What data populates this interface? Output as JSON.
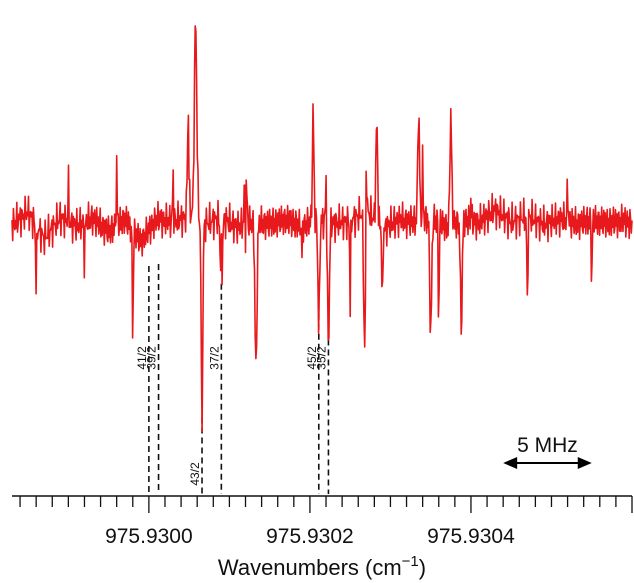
{
  "chart_data": {
    "type": "line",
    "xlabel": "Wavenumbers (cm",
    "xlabel_superscript": "−1",
    "xlabel_close": ")",
    "xlim": [
      975.92983,
      975.9306
    ],
    "tick_step": 2e-05,
    "tick_labels": [
      {
        "x": 975.93,
        "label": "975.9300"
      },
      {
        "x": 975.9302,
        "label": "975.9302"
      },
      {
        "x": 975.9304,
        "label": "975.9304"
      }
    ],
    "scale_bar": {
      "label": "5 MHz",
      "x_start": 975.93044,
      "x_end": 975.93055
    },
    "assignment_lines": [
      {
        "label": "41/2",
        "x": 975.93,
        "y_from": -0.18
      },
      {
        "label": "39/2",
        "x": 975.930012,
        "y_from": -0.17
      },
      {
        "label": "43/2",
        "x": 975.930066,
        "y_from": -0.95
      },
      {
        "label": "37/2",
        "x": 975.93009,
        "y_from": -0.27
      },
      {
        "label": "45/2",
        "x": 975.930211,
        "y_from": -0.27
      },
      {
        "label": "35/2",
        "x": 975.930223,
        "y_from": -0.35
      }
    ],
    "ylim": [
      -1.1,
      1.05
    ],
    "series": [
      {
        "color": "#e8191c",
        "points": [
          [
            975.92983,
            0.0
          ],
          [
            975.92985,
            0.25
          ],
          [
            975.92987,
            -0.28
          ],
          [
            975.92989,
            0.14
          ],
          [
            975.92991,
            -0.03
          ],
          [
            975.92993,
            0.13
          ],
          [
            975.92995,
            -0.15
          ],
          [
            975.92997,
            0.12
          ],
          [
            975.92999,
            -0.35
          ],
          [
            975.93001,
            0.12
          ],
          [
            975.93003,
            0.05
          ],
          [
            975.93005,
            0.18
          ],
          [
            975.93007,
            0.02
          ],
          [
            975.93009,
            0.15
          ],
          [
            975.93011,
            -0.05
          ],
          [
            975.93013,
            0.05
          ],
          [
            975.93015,
            0.02
          ],
          [
            975.93017,
            0.1
          ],
          [
            975.93019,
            -0.03
          ],
          [
            975.93021,
            0.1
          ],
          [
            975.93023,
            0.02
          ],
          [
            975.93025,
            0.07
          ],
          [
            975.93027,
            0.3
          ],
          [
            975.93029,
            -0.1
          ],
          [
            975.93031,
            0.1
          ],
          [
            975.93033,
            0.05
          ],
          [
            975.93035,
            0.15
          ],
          [
            975.93037,
            -0.05
          ],
          [
            975.93039,
            0.1
          ],
          [
            975.93041,
            0.04
          ],
          [
            975.93043,
            0.3
          ],
          [
            975.93045,
            0.05
          ],
          [
            975.93047,
            0.18
          ],
          [
            975.93049,
            0.0
          ],
          [
            975.93051,
            0.12
          ],
          [
            975.93053,
            0.02
          ],
          [
            975.93055,
            0.09
          ],
          [
            975.93057,
            0.04
          ],
          [
            975.93059,
            0.08
          ],
          [
            975.9306,
            0.02
          ]
        ]
      }
    ]
  }
}
